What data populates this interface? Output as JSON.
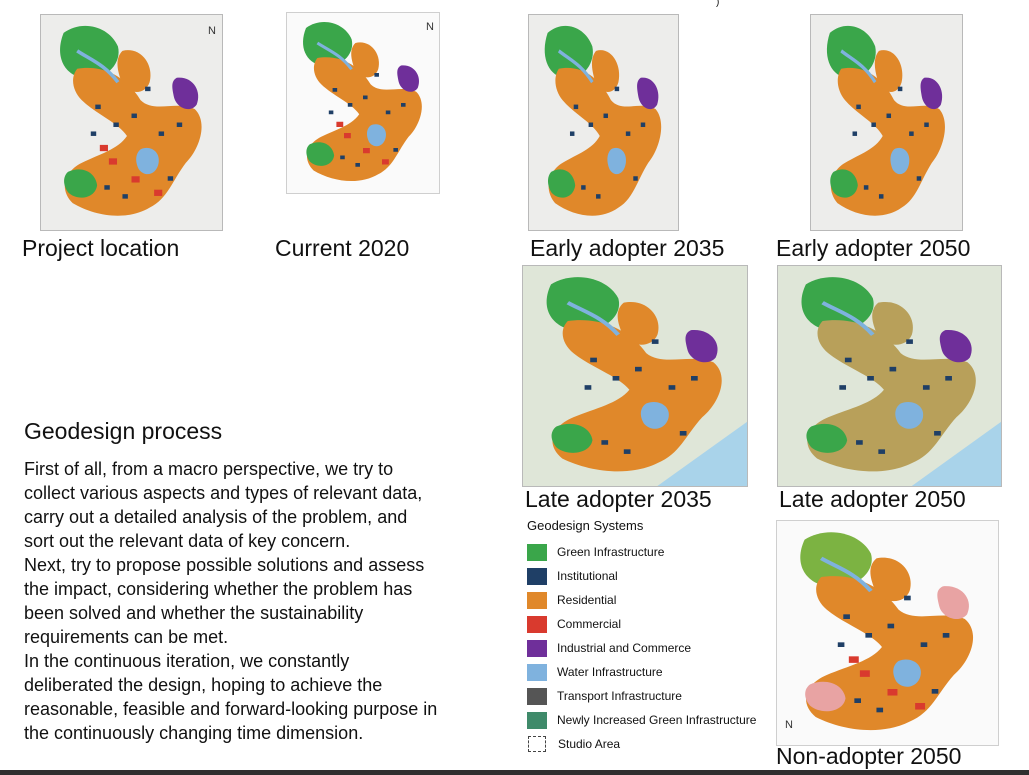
{
  "top_fragment": ")",
  "maps": [
    {
      "id": "project-location",
      "caption": "Project location"
    },
    {
      "id": "current-2020",
      "caption": "Current 2020"
    },
    {
      "id": "early-adopter-2035",
      "caption": "Early adopter 2035"
    },
    {
      "id": "early-adopter-2050",
      "caption": "Early adopter 2050"
    },
    {
      "id": "late-adopter-2035",
      "caption": "Late adopter 2035"
    },
    {
      "id": "late-adopter-2050",
      "caption": "Late adopter 2050"
    },
    {
      "id": "non-adopter-2050",
      "caption": "Non-adopter 2050"
    }
  ],
  "north_label": "N",
  "process": {
    "heading": "Geodesign process",
    "lines": [
      "First of all, from a macro perspective, we try to",
      "collect various aspects and types of relevant data,",
      "carry out a detailed analysis of the problem, and",
      "sort out the relevant data of key concern.",
      "Next, try to propose possible solutions and assess",
      "the impact, considering whether the problem has",
      "been solved and whether the sustainability",
      "requirements can be met.",
      "In the continuous iteration, we constantly",
      "deliberated the design, hoping to achieve the",
      "reasonable, feasible and forward-looking purpose in",
      "the continuously changing time dimension."
    ]
  },
  "legend": {
    "title": "Geodesign Systems",
    "items": [
      {
        "label": "Green Infrastructure",
        "color": "#3aa64a"
      },
      {
        "label": "Institutional",
        "color": "#1f3f66"
      },
      {
        "label": "Residential",
        "color": "#e0882a"
      },
      {
        "label": "Commercial",
        "color": "#d93a2e"
      },
      {
        "label": "Industrial and Commerce",
        "color": "#6f2f9a"
      },
      {
        "label": "Water Infrastructure",
        "color": "#7fb2de"
      },
      {
        "label": "Transport Infrastructure",
        "color": "#555555"
      },
      {
        "label": "Newly Increased Green Infrastructure",
        "color": "#3f8a6a"
      },
      {
        "label": "Studio Area",
        "color": "dashed"
      }
    ]
  }
}
